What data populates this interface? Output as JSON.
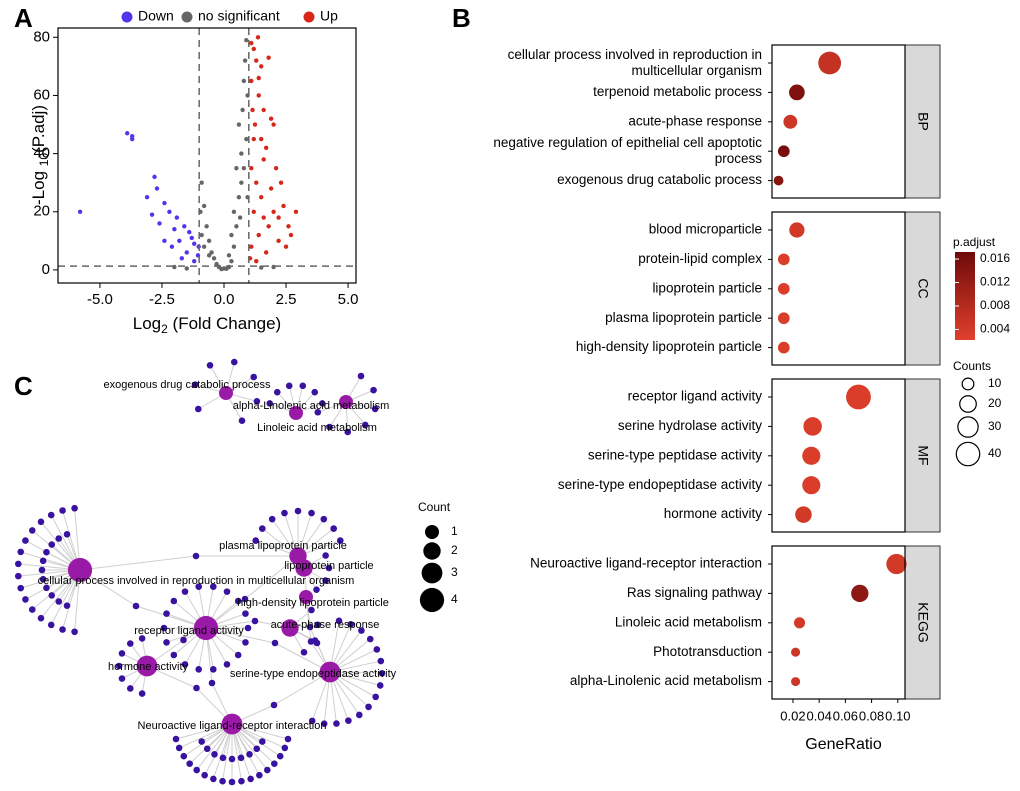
{
  "panel_labels": {
    "a": "A",
    "b": "B",
    "c": "C"
  },
  "chart_data": [
    {
      "type": "scatter",
      "xlabel": [
        "Log",
        "2",
        " (Fold Change)"
      ],
      "ylabel": [
        "-Log ",
        "10",
        "(P.adj)"
      ],
      "xlim": [
        -6.69,
        5.32
      ],
      "ylim": [
        -4.5,
        83.2
      ],
      "xticks": [
        {
          "value": -5,
          "label": "-5.0"
        },
        {
          "value": -2.5,
          "label": "-2.5"
        },
        {
          "value": 0,
          "label": "0.0"
        },
        {
          "value": 2.5,
          "label": "2.5"
        },
        {
          "value": 5,
          "label": "5.0"
        }
      ],
      "yticks": [
        0,
        20,
        40,
        60,
        80
      ],
      "thresholds": {
        "x": [
          -1,
          1
        ],
        "y": 1.3
      },
      "series": [
        {
          "name": "Down",
          "color": "#5533ee",
          "x": [
            -5.8,
            -3.9,
            -3.7,
            -3.7,
            -2.8,
            -2.7,
            -3.1,
            -2.4,
            -2.9,
            -2.2,
            -1.9,
            -1.6,
            -2.0,
            -1.4,
            -2.4,
            -1.8,
            -1.2,
            -2.1,
            -1.5,
            -1.05,
            -1.7,
            -1.2,
            -1.3,
            -2.6,
            -1.02
          ],
          "values": [
            20,
            47,
            46,
            45,
            32,
            28,
            25,
            23,
            19,
            20,
            18,
            15,
            14,
            13,
            10,
            10,
            9,
            8,
            6,
            5,
            4,
            3,
            11,
            16,
            8
          ]
        },
        {
          "name": "no significant",
          "color": "#666666",
          "x": [
            -0.9,
            -0.8,
            -0.7,
            -0.6,
            -0.5,
            -0.4,
            -0.3,
            -0.2,
            0,
            0.2,
            0.3,
            0.4,
            0.5,
            0.6,
            0.7,
            0.75,
            0.8,
            0.85,
            0.9,
            0.95,
            0.6,
            0.5,
            0.4,
            -0.9,
            -0.95,
            -0.6,
            0.3,
            0.7,
            0.9,
            0.8,
            -0.1,
            0.1,
            -0.8,
            0.95,
            0.2,
            -1.5,
            1.5,
            -2,
            2,
            0.65
          ],
          "values": [
            30,
            22,
            15,
            10,
            6,
            4,
            2,
            1,
            0.5,
            1,
            3,
            8,
            15,
            25,
            40,
            55,
            65,
            72,
            79,
            60,
            50,
            35,
            20,
            12,
            20,
            5,
            12,
            30,
            45,
            35,
            0.3,
            0.4,
            8,
            25,
            5,
            0.5,
            0.8,
            1,
            1,
            18
          ]
        },
        {
          "name": "Up",
          "color": "#d62718",
          "x": [
            1.1,
            1.2,
            1.3,
            1.1,
            1.5,
            1.8,
            1.4,
            1.6,
            2.0,
            1.2,
            1.7,
            2.1,
            1.3,
            1.5,
            1.9,
            2.4,
            2.9,
            2.6,
            2.7,
            2.2,
            1.1,
            1.4,
            1.6,
            2.0,
            1.2,
            1.8,
            2.3,
            1.05,
            1.3,
            1.7,
            2.5,
            1.9,
            1.4,
            1.6,
            1.1,
            1.25,
            1.5,
            2.2,
            1.37,
            1.15
          ],
          "values": [
            78,
            76,
            72,
            65,
            70,
            73,
            60,
            55,
            50,
            45,
            42,
            35,
            30,
            25,
            28,
            22,
            20,
            15,
            12,
            10,
            8,
            12,
            18,
            20,
            20,
            15,
            30,
            4,
            3,
            6,
            8,
            52,
            66,
            38,
            35,
            50,
            45,
            18,
            80,
            55
          ]
        }
      ]
    },
    {
      "type": "dot",
      "xlabel": "GeneRatio",
      "xlim": [
        0.004,
        0.1055
      ],
      "xticks": [
        0.02,
        0.04,
        0.06,
        0.08,
        {
          "value": 0.1,
          "label": "0.10"
        }
      ],
      "color_label": "p.adjust",
      "color_scale": {
        "low": "#e0402c",
        "high": "#6e0a0a",
        "range": [
          0.0022,
          0.0172
        ]
      },
      "color_ticks": [
        0.004,
        0.008,
        0.012,
        0.016
      ],
      "size_label": "Counts",
      "size_ticks": [
        10,
        20,
        30,
        40
      ],
      "facets": [
        {
          "name": "BP",
          "categories": [
            "cellular process involved in reproduction in\nmulticellular organism",
            "terpenoid metabolic process",
            "acute-phase response",
            "negative regulation of epithelial cell apoptotic\nprocess",
            "exogenous drug catabolic process"
          ],
          "values": [
            0.048,
            0.023,
            0.018,
            0.013,
            0.009
          ],
          "counts": [
            38,
            18,
            14,
            10,
            7
          ],
          "p_adjust": [
            0.006,
            0.015,
            0.005,
            0.016,
            0.014
          ]
        },
        {
          "name": "CC",
          "categories": [
            "blood microparticle",
            "protein-lipid complex",
            "lipoprotein particle",
            "plasma lipoprotein particle",
            "high-density lipoprotein particle"
          ],
          "values": [
            0.023,
            0.013,
            0.013,
            0.013,
            0.013
          ],
          "counts": [
            17,
            10,
            10,
            10,
            10
          ],
          "p_adjust": [
            0.004,
            0.003,
            0.003,
            0.003,
            0.003
          ]
        },
        {
          "name": "MF",
          "categories": [
            "receptor ligand activity",
            "serine hydrolase activity",
            "serine-type peptidase activity",
            "serine-type endopeptidase activity",
            "hormone activity"
          ],
          "values": [
            0.07,
            0.035,
            0.034,
            0.034,
            0.028
          ],
          "counts": [
            45,
            25,
            24,
            24,
            20
          ],
          "p_adjust": [
            0.003,
            0.003,
            0.003,
            0.003,
            0.004
          ]
        },
        {
          "name": "KEGG",
          "categories": [
            "Neuroactive ligand-receptor interaction",
            "Ras signaling pathway",
            "Linoleic acid metabolism",
            "Phototransduction",
            "alpha-Linolenic acid metabolism"
          ],
          "values": [
            0.099,
            0.071,
            0.025,
            0.022,
            0.022
          ],
          "counts": [
            30,
            22,
            9,
            6,
            6
          ],
          "p_adjust": [
            0.004,
            0.013,
            0.004,
            0.005,
            0.005
          ]
        }
      ]
    }
  ],
  "network": {
    "size_label": "Count",
    "size_ticks": [
      1,
      2,
      3,
      4
    ],
    "terms": [
      {
        "label": "exogenous drug catabolic process",
        "count": 1
      },
      {
        "label": "alpha-Linolenic acid metabolism",
        "count": 1
      },
      {
        "label": "Linoleic acid metabolism",
        "count": 1
      },
      {
        "label": "cellular process involved in reproduction in multicellular organism",
        "count": 4
      },
      {
        "label": "plasma lipoprotein particle",
        "count": 2
      },
      {
        "label": "lipoprotein particle",
        "count": 2
      },
      {
        "label": "high-density lipoprotein particle",
        "count": 1
      },
      {
        "label": "receptor ligand activity",
        "count": 4
      },
      {
        "label": "acute-phase response",
        "count": 2
      },
      {
        "label": "hormone activity",
        "count": 3
      },
      {
        "label": "serine-type endopeptidase activity",
        "count": 3
      },
      {
        "label": "Neuroactive ligand-receptor interaction",
        "count": 3
      }
    ]
  }
}
